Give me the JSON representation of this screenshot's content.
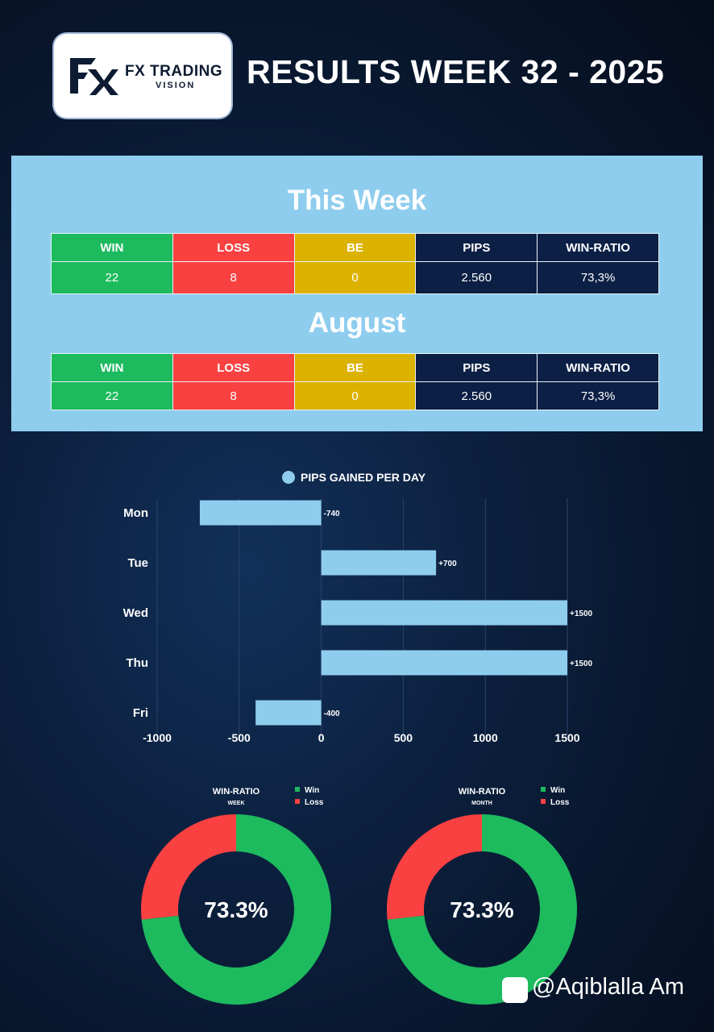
{
  "header": {
    "logo_text": "FX TRADING",
    "logo_subtext": "VISION",
    "title": "RESULTS WEEK 32 - 2025"
  },
  "sections": [
    {
      "title": "This Week",
      "headers": [
        "WIN",
        "LOSS",
        "BE",
        "PIPS",
        "WIN-RATIO"
      ],
      "values": [
        "22",
        "8",
        "0",
        "2.560",
        "73,3%"
      ]
    },
    {
      "title": "August",
      "headers": [
        "WIN",
        "LOSS",
        "BE",
        "PIPS",
        "WIN-RATIO"
      ],
      "values": [
        "22",
        "8",
        "0",
        "2.560",
        "73,3%"
      ]
    }
  ],
  "colors": {
    "win": "#1dba5e",
    "loss": "#fa4141",
    "be": "#dcb200",
    "dark": "#0c1f45",
    "bar": "#8ecdee"
  },
  "chart_data": [
    {
      "type": "bar",
      "orientation": "horizontal",
      "legend": "PIPS GAINED PER DAY",
      "legend_position": "top",
      "categories": [
        "Mon",
        "Tue",
        "Wed",
        "Thu",
        "Fri"
      ],
      "values": [
        -740,
        700,
        1500,
        1500,
        -400
      ],
      "value_labels": [
        "-740",
        "+700",
        "+1500",
        "+1500",
        "-400"
      ],
      "xlim": [
        -1000,
        1500
      ],
      "xticks": [
        "-1000",
        "-500",
        "0",
        "500",
        "1000",
        "1500"
      ],
      "xtick_values": [
        -1000,
        -500,
        0,
        500,
        1000,
        1500
      ],
      "grid": true
    },
    {
      "type": "pie",
      "title": "WIN-RATIO",
      "subtitle": "WEEK",
      "legend": [
        "Win",
        "Loss"
      ],
      "values": [
        73.3,
        26.7
      ],
      "center_label": "73.3%"
    },
    {
      "type": "pie",
      "title": "WIN-RATIO",
      "subtitle": "MONTH",
      "legend": [
        "Win",
        "Loss"
      ],
      "values": [
        73.3,
        26.7
      ],
      "center_label": "73.3%"
    }
  ],
  "watermark": "@Aqiblalla Am"
}
